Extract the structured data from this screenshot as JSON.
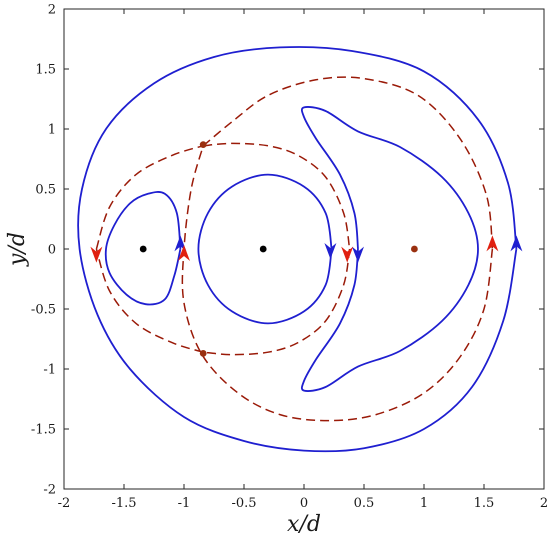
{
  "chart_data": {
    "type": "line",
    "title": "",
    "xlabel": "x/d",
    "ylabel": "y/d",
    "xlim": [
      -2,
      2
    ],
    "ylim": [
      -2,
      2
    ],
    "xticks": [
      -2,
      -1.5,
      -1,
      -0.5,
      0,
      0.5,
      1,
      1.5,
      2
    ],
    "yticks": [
      -2,
      -1.5,
      -1,
      -0.5,
      0,
      0.5,
      1,
      1.5,
      2
    ],
    "xtick_labels": [
      "-2",
      "-1.5",
      "-1",
      "-0.5",
      "0",
      "0.5",
      "1",
      "1.5",
      "2"
    ],
    "ytick_labels": [
      "-2",
      "-1.5",
      "-1",
      "-0.5",
      "0",
      "0.5",
      "1",
      "1.5",
      "2"
    ],
    "grid": false,
    "legend": "none",
    "colors": {
      "solid": "#1f1fd0",
      "dashed": "#9a1a08",
      "dashed_arrow": "#e02010",
      "point": "#000000",
      "saddle": "#9a3010",
      "frame": "#262626"
    },
    "series": [
      {
        "style": "solid",
        "x": [
          1.77,
          1.66,
          1.4,
          1.0,
          0.5,
          0.0,
          -0.5,
          -1.0,
          -1.45,
          -1.72,
          -1.87,
          -1.85,
          -1.65,
          -1.25,
          -0.75,
          -0.2,
          0.4,
          1.0,
          1.45,
          1.7,
          1.77
        ],
        "y": [
          0.0,
          -0.6,
          -1.15,
          -1.5,
          -1.66,
          -1.68,
          -1.6,
          -1.4,
          -1.0,
          -0.55,
          0.0,
          0.5,
          1.0,
          1.38,
          1.6,
          1.68,
          1.65,
          1.48,
          1.08,
          0.55,
          0.0
        ],
        "arrows": [
          {
            "x": 1.77,
            "y": 0.03,
            "dir": "up"
          }
        ]
      },
      {
        "style": "solid",
        "x": [
          0.45,
          0.42,
          0.3,
          0.1,
          0.0,
          0.0,
          0.18,
          0.45,
          0.8,
          1.15,
          1.37,
          1.45,
          1.37,
          1.15,
          0.8,
          0.45,
          0.18,
          0.0,
          0.0,
          0.1,
          0.3,
          0.42,
          0.45
        ],
        "y": [
          0.0,
          0.3,
          0.62,
          0.92,
          1.1,
          1.18,
          1.15,
          0.98,
          0.85,
          0.6,
          0.3,
          0.0,
          -0.3,
          -0.6,
          -0.85,
          -0.98,
          -1.15,
          -1.18,
          -1.1,
          -0.92,
          -0.62,
          -0.3,
          0.0
        ],
        "arrows": [
          {
            "x": 0.45,
            "y": -0.03,
            "dir": "down"
          }
        ]
      },
      {
        "style": "solid",
        "x": [
          0.23,
          0.18,
          0.0,
          -0.3,
          -0.6,
          -0.8,
          -0.88,
          -0.8,
          -0.6,
          -0.3,
          0.0,
          0.18,
          0.23
        ],
        "y": [
          0.0,
          0.3,
          0.52,
          0.62,
          0.52,
          0.3,
          0.0,
          -0.3,
          -0.52,
          -0.62,
          -0.52,
          -0.3,
          0.0
        ],
        "arrows": [
          {
            "x": 0.22,
            "y": 0.0,
            "dir": "down"
          }
        ]
      },
      {
        "style": "solid",
        "x": [
          -1.03,
          -1.06,
          -1.16,
          -1.3,
          -1.45,
          -1.58,
          -1.65,
          -1.62,
          -1.48,
          -1.32,
          -1.16,
          -1.08,
          -1.03
        ],
        "y": [
          0.0,
          0.3,
          0.46,
          0.46,
          0.38,
          0.2,
          0.0,
          -0.2,
          -0.38,
          -0.46,
          -0.42,
          -0.22,
          0.0
        ],
        "arrows": [
          {
            "x": -1.03,
            "y": 0.03,
            "dir": "up"
          }
        ]
      },
      {
        "style": "dashed",
        "x": [
          1.57,
          1.5,
          1.3,
          1.0,
          0.6,
          0.2,
          -0.2,
          -0.55,
          -0.85,
          -1.0,
          -1.0,
          -0.94,
          -0.84
        ],
        "y": [
          0.0,
          -0.5,
          -0.9,
          -1.2,
          -1.38,
          -1.43,
          -1.38,
          -1.2,
          -0.88,
          -0.45,
          0.0,
          0.5,
          0.86
        ],
        "arrows": [
          {
            "x": -1.0,
            "y": -0.05,
            "dir": "up"
          }
        ]
      },
      {
        "style": "dashed",
        "x": [
          -0.84,
          -0.6,
          -0.3,
          0.1,
          0.5,
          0.95,
          1.3,
          1.52,
          1.57
        ],
        "y": [
          0.86,
          1.06,
          1.28,
          1.41,
          1.42,
          1.28,
          0.92,
          0.45,
          0.0
        ],
        "arrows": [
          {
            "x": 1.57,
            "y": 0.03,
            "dir": "up"
          }
        ]
      },
      {
        "style": "dashed",
        "x": [
          -0.84,
          -0.6,
          -0.3,
          -0.05,
          0.18,
          0.33,
          0.38
        ],
        "y": [
          0.86,
          0.88,
          0.86,
          0.78,
          0.6,
          0.3,
          0.0
        ],
        "arrows": [
          {
            "x": 0.36,
            "y": -0.03,
            "dir": "down"
          }
        ]
      },
      {
        "style": "dashed",
        "x": [
          0.38,
          0.33,
          0.18,
          -0.05,
          -0.3,
          -0.6,
          -0.84
        ],
        "y": [
          0.0,
          -0.3,
          -0.6,
          -0.78,
          -0.86,
          -0.88,
          -0.86
        ],
        "arrows": []
      },
      {
        "style": "dashed",
        "x": [
          -0.84,
          -1.1,
          -1.4,
          -1.62,
          -1.73
        ],
        "y": [
          -0.86,
          -0.78,
          -0.62,
          -0.35,
          0.0
        ],
        "arrows": []
      },
      {
        "style": "dashed",
        "x": [
          -1.73,
          -1.62,
          -1.4,
          -1.1,
          -0.84
        ],
        "y": [
          0.0,
          0.35,
          0.62,
          0.78,
          0.86
        ],
        "arrows": [
          {
            "x": -1.73,
            "y": -0.03,
            "dir": "down"
          }
        ]
      }
    ],
    "points": [
      {
        "x": -1.34,
        "y": 0.0,
        "kind": "point"
      },
      {
        "x": -0.34,
        "y": 0.0,
        "kind": "point"
      },
      {
        "x": 0.92,
        "y": 0.0,
        "kind": "saddle"
      },
      {
        "x": -0.84,
        "y": 0.87,
        "kind": "saddle"
      },
      {
        "x": -0.84,
        "y": -0.87,
        "kind": "saddle"
      }
    ]
  }
}
